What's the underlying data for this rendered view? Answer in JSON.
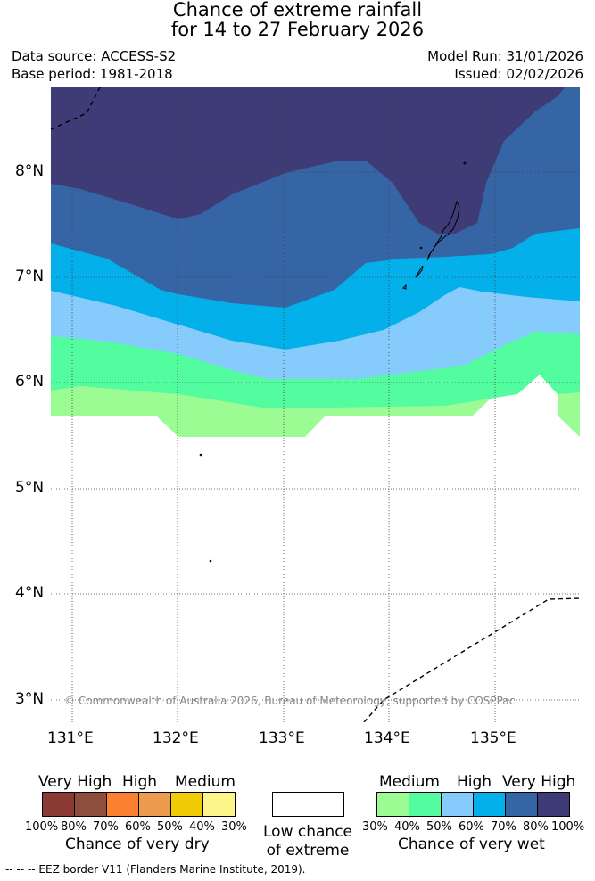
{
  "header": {
    "title_line1": "Chance of extreme rainfall",
    "title_line2": "for 14 to 27 February 2026",
    "data_source": "Data source: ACCESS-S2",
    "base_period": "Base period: 1981-2018",
    "model_run": "Model Run: 31/01/2026",
    "issued": "Issued: 02/02/2026"
  },
  "map": {
    "lat_labels": [
      "8°N",
      "7°N",
      "6°N",
      "5°N",
      "4°N",
      "3°N"
    ],
    "lon_labels": [
      "131°E",
      "132°E",
      "133°E",
      "134°E",
      "135°E"
    ],
    "copyright": "© Commonwealth of Australia 2026, Bureau of Meteorology, supported by COSPPac"
  },
  "legend": {
    "dry": {
      "categories": [
        "Very High",
        "High",
        "Medium"
      ],
      "percentages": [
        "100%",
        "80%",
        "70%",
        "60%",
        "50%",
        "40%",
        "30%"
      ],
      "title": "Chance of very dry",
      "colors": [
        "#8b3a33",
        "#8d4e3e",
        "#fd8031",
        "#ec9c4c",
        "#f0cb06",
        "#fcf68a"
      ]
    },
    "neutral": {
      "line1": "Low chance",
      "line2": "of extreme"
    },
    "wet": {
      "categories": [
        "Medium",
        "High",
        "Very High"
      ],
      "percentages": [
        "30%",
        "40%",
        "50%",
        "60%",
        "70%",
        "80%",
        "100%"
      ],
      "title": "Chance of very wet",
      "colors": [
        "#9afc93",
        "#52fc9f",
        "#85ccfc",
        "#03b0ea",
        "#3565a4",
        "#3e3b77"
      ]
    },
    "footnote": "-- -- -- EEZ border V11 (Flanders Marine Institute, 2019)."
  }
}
